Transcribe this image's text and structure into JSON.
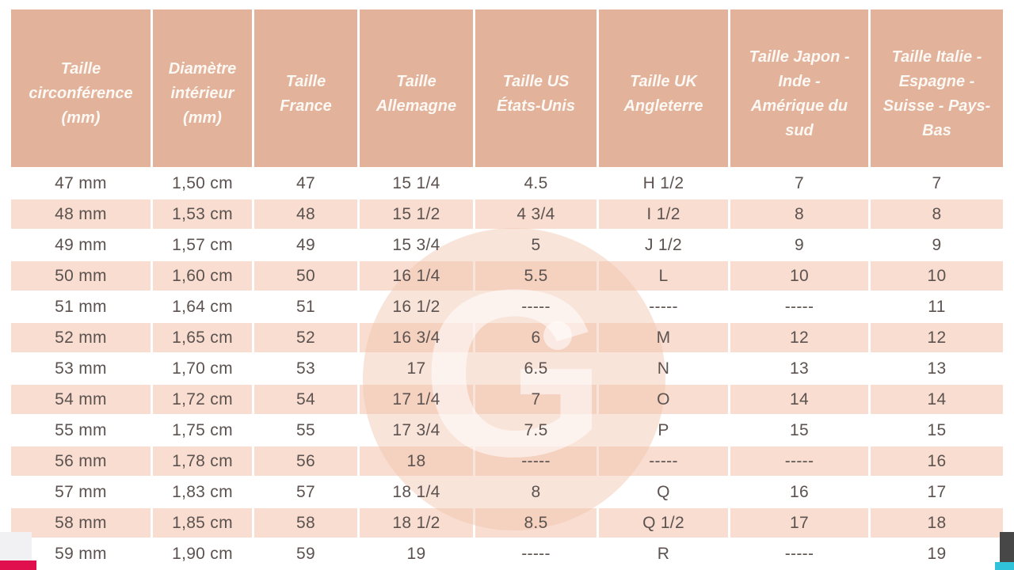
{
  "chart_data": {
    "type": "table",
    "columns": [
      "Taille circonférence (mm)",
      "Diamètre intérieur (mm)",
      "Taille France",
      "Taille Allemagne",
      "Taille US États-Unis",
      "Taille UK Angleterre",
      "Taille Japon - Inde - Amérique du sud",
      "Taille Italie - Espagne - Suisse - Pays-Bas"
    ],
    "rows": [
      [
        "47 mm",
        "1,50 cm",
        "47",
        "15 1/4",
        "4.5",
        "H 1/2",
        "7",
        "7"
      ],
      [
        "48 mm",
        "1,53 cm",
        "48",
        "15 1/2",
        "4 3/4",
        "I 1/2",
        "8",
        "8"
      ],
      [
        "49 mm",
        "1,57 cm",
        "49",
        "15 3/4",
        "5",
        "J 1/2",
        "9",
        "9"
      ],
      [
        "50 mm",
        "1,60 cm",
        "50",
        "16 1/4",
        "5.5",
        "L",
        "10",
        "10"
      ],
      [
        "51 mm",
        "1,64 cm",
        "51",
        "16 1/2",
        "-----",
        "-----",
        "-----",
        "11"
      ],
      [
        "52 mm",
        "1,65 cm",
        "52",
        "16 3/4",
        "6",
        "M",
        "12",
        "12"
      ],
      [
        "53 mm",
        "1,70 cm",
        "53",
        "17",
        "6.5",
        "N",
        "13",
        "13"
      ],
      [
        "54 mm",
        "1,72 cm",
        "54",
        "17 1/4",
        "7",
        "O",
        "14",
        "14"
      ],
      [
        "55 mm",
        "1,75 cm",
        "55",
        "17 3/4",
        "7.5",
        "P",
        "15",
        "15"
      ],
      [
        "56 mm",
        "1,78 cm",
        "56",
        "18",
        "-----",
        "-----",
        "-----",
        "16"
      ],
      [
        "57 mm",
        "1,83 cm",
        "57",
        "18 1/4",
        "8",
        "Q",
        "16",
        "17"
      ],
      [
        "58 mm",
        "1,85 cm",
        "58",
        "18 1/2",
        "8.5",
        "Q 1/2",
        "17",
        "18"
      ],
      [
        "59 mm",
        "1,90 cm",
        "59",
        "19",
        "-----",
        "R",
        "-----",
        "19"
      ]
    ]
  },
  "watermark": {
    "letter": "G"
  },
  "colors": {
    "header-bg": "#e2b29b",
    "header-text": "#fcf8f3",
    "row-alt": "#f8ddd0",
    "body-text": "#5c5350",
    "edge-gray": "#f1f0f2",
    "edge-magenta": "#e0104e",
    "edge-dark": "#474747",
    "edge-cyan": "#2fc2d9",
    "wm-disc": "rgba(242,196,172,0.45)",
    "wm-glyph": "rgba(255,255,255,0.55)"
  }
}
